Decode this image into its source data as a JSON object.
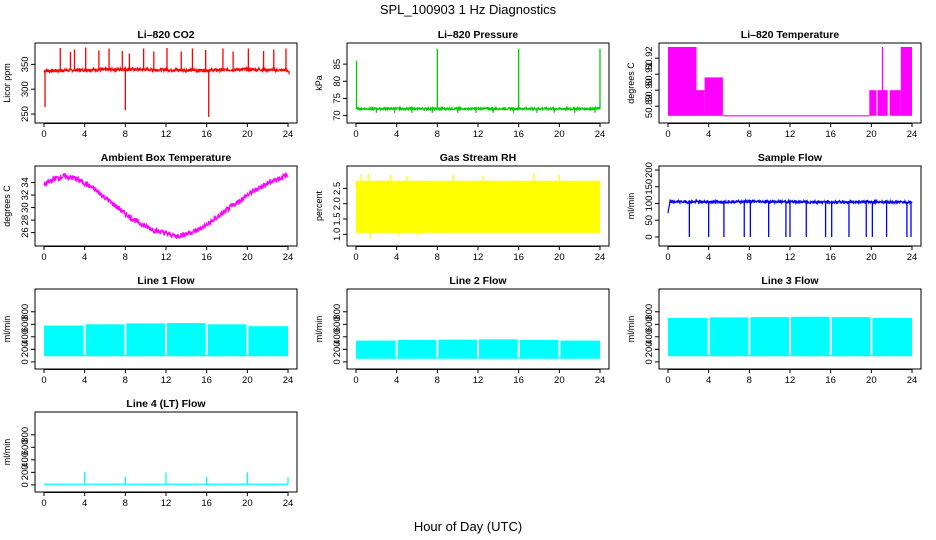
{
  "figure": {
    "title": "SPL_100903  1 Hz Diagnostics",
    "xlabel": "Hour of Day (UTC)"
  },
  "chart_data": [
    {
      "type": "line",
      "title": "Li–820 CO2",
      "ylabel": "Licor ppm",
      "color": "#ff0000",
      "xlim": [
        0,
        24
      ],
      "ylim": [
        240,
        385
      ],
      "x_ticks": [
        "0",
        "4",
        "8",
        "12",
        "16",
        "20",
        "24"
      ],
      "y_ticks": [
        "250",
        "300",
        "350"
      ],
      "y_tick_values": [
        250,
        300,
        350
      ],
      "series": [
        {
          "baseline": [
            [
              0,
              337
            ],
            [
              4,
              339
            ],
            [
              8,
              340
            ],
            [
              12,
              339
            ],
            [
              16,
              338
            ],
            [
              20,
              340
            ],
            [
              24,
              338
            ]
          ],
          "spikes": [
            [
              0.1,
              264
            ],
            [
              1.6,
              383
            ],
            [
              2.6,
              375
            ],
            [
              3.0,
              380
            ],
            [
              4.1,
              384
            ],
            [
              5.4,
              378
            ],
            [
              6.4,
              382
            ],
            [
              7.7,
              377
            ],
            [
              8.0,
              258
            ],
            [
              8.4,
              372
            ],
            [
              9.8,
              382
            ],
            [
              10.8,
              376
            ],
            [
              12.1,
              383
            ],
            [
              13.5,
              376
            ],
            [
              14.6,
              382
            ],
            [
              15.9,
              379
            ],
            [
              16.2,
              244
            ],
            [
              17.6,
              382
            ],
            [
              18.6,
              376
            ],
            [
              20.1,
              382
            ],
            [
              21.6,
              377
            ],
            [
              22.6,
              380
            ],
            [
              23.8,
              382
            ],
            [
              24.1,
              330
            ]
          ],
          "noise": 3
        }
      ]
    },
    {
      "type": "line",
      "title": "Li–820 Pressure",
      "ylabel": "kPa",
      "color": "#00cc00",
      "xlim": [
        0,
        24
      ],
      "ylim": [
        69,
        90
      ],
      "x_ticks": [
        "0",
        "4",
        "8",
        "12",
        "16",
        "20",
        "24"
      ],
      "y_ticks": [
        "70",
        "75",
        "80",
        "85"
      ],
      "y_tick_values": [
        70,
        75,
        80,
        85
      ],
      "series": [
        {
          "baseline": [
            [
              0,
              72
            ],
            [
              4,
              72
            ],
            [
              8,
              72
            ],
            [
              12,
              72
            ],
            [
              16,
              72
            ],
            [
              20,
              72
            ],
            [
              24,
              72
            ]
          ],
          "spikes": [
            [
              0.05,
              86
            ],
            [
              8.0,
              89.5
            ],
            [
              16.0,
              89.5
            ],
            [
              24.0,
              89.5
            ],
            [
              2.0,
              70.8
            ],
            [
              3.8,
              70.8
            ],
            [
              5.5,
              70.8
            ],
            [
              7.5,
              70.8
            ],
            [
              10.0,
              70.8
            ],
            [
              11.8,
              70.8
            ],
            [
              13.5,
              70.8
            ],
            [
              15.5,
              70.8
            ],
            [
              17.8,
              70.8
            ],
            [
              19.5,
              70.8
            ],
            [
              21.5,
              70.8
            ],
            [
              23.5,
              70.8
            ]
          ],
          "noise": 0.3
        }
      ]
    },
    {
      "type": "line",
      "title": "Li–820 Temperature",
      "ylabel": "degrees C",
      "color": "#ff00ff",
      "xlim": [
        0,
        24
      ],
      "ylim": [
        50.882,
        50.927
      ],
      "x_ticks": [
        "0",
        "4",
        "8",
        "12",
        "16",
        "20",
        "24"
      ],
      "y_ticks": [
        "50.89",
        "50.90",
        "50.91",
        "50.92"
      ],
      "y_tick_values": [
        50.89,
        50.9,
        50.91,
        50.92
      ],
      "bands": [
        [
          0,
          2.8,
          50.884,
          50.927
        ],
        [
          2.8,
          3.6,
          50.884,
          50.9
        ],
        [
          3.6,
          5.4,
          50.884,
          50.908
        ],
        [
          19.8,
          20.5,
          50.884,
          50.9
        ],
        [
          20.6,
          21.6,
          50.884,
          50.9
        ],
        [
          21.8,
          22.9,
          50.884,
          50.9
        ],
        [
          22.9,
          24,
          50.884,
          50.927
        ]
      ],
      "series": [
        {
          "baseline": [
            [
              5.4,
              50.884
            ],
            [
              19.8,
              50.884
            ]
          ],
          "spikes": [
            [
              21.1,
              50.927
            ]
          ],
          "noise": 0
        }
      ]
    },
    {
      "type": "line",
      "title": "Ambient Box Temperature",
      "ylabel": "degrees C",
      "color": "#ff00ff",
      "xlim": [
        0,
        24
      ],
      "ylim": [
        24.5,
        36
      ],
      "x_ticks": [
        "0",
        "4",
        "8",
        "12",
        "16",
        "20",
        "24"
      ],
      "y_ticks": [
        "26",
        "28",
        "30",
        "32",
        "34"
      ],
      "y_tick_values": [
        26,
        28,
        30,
        32,
        34
      ],
      "series": [
        {
          "baseline": [
            [
              0,
              33.6
            ],
            [
              1,
              34.6
            ],
            [
              2,
              35.0
            ],
            [
              3,
              34.7
            ],
            [
              4,
              33.9
            ],
            [
              5,
              32.9
            ],
            [
              6,
              31.6
            ],
            [
              7,
              30.3
            ],
            [
              8,
              29.0
            ],
            [
              9,
              27.9
            ],
            [
              10,
              27.0
            ],
            [
              11,
              26.3
            ],
            [
              12,
              25.9
            ],
            [
              13,
              25.4
            ],
            [
              14,
              25.8
            ],
            [
              15,
              26.3
            ],
            [
              16,
              27.2
            ],
            [
              17,
              28.4
            ],
            [
              18,
              29.6
            ],
            [
              19,
              30.8
            ],
            [
              20,
              32.0
            ],
            [
              21,
              33.0
            ],
            [
              22,
              33.9
            ],
            [
              23,
              34.6
            ],
            [
              24,
              35.2
            ]
          ],
          "spikes": [],
          "noise": 0.45
        }
      ]
    },
    {
      "type": "line",
      "title": "Gas Stream RH",
      "ylabel": "percent",
      "color": "#ffff00",
      "xlim": [
        0,
        24
      ],
      "ylim": [
        0.75,
        3.1
      ],
      "x_ticks": [
        "0",
        "4",
        "8",
        "12",
        "16",
        "20",
        "24"
      ],
      "y_ticks": [
        "1.0",
        "1.5",
        "2.0",
        "2.5"
      ],
      "y_tick_values": [
        1.0,
        1.5,
        2.0,
        2.5
      ],
      "bands": [
        [
          0,
          24,
          1.05,
          2.75
        ]
      ],
      "series": [
        {
          "baseline": [
            [
              0,
              2.6
            ],
            [
              24,
              2.6
            ]
          ],
          "spikes": [
            [
              0.5,
              2.95
            ],
            [
              1.2,
              3.0
            ],
            [
              3.4,
              2.95
            ],
            [
              5.0,
              2.9
            ],
            [
              9.6,
              2.95
            ],
            [
              12.5,
              2.9
            ],
            [
              17.5,
              3.0
            ],
            [
              20.0,
              2.95
            ],
            [
              1.4,
              0.85
            ],
            [
              4.2,
              0.95
            ],
            [
              6.1,
              0.95
            ]
          ],
          "noise": 0.1
        }
      ]
    },
    {
      "type": "line",
      "title": "Sample Flow",
      "ylabel": "ml/min",
      "color": "#0000ff",
      "xlim": [
        0,
        24
      ],
      "ylim": [
        -15,
        200
      ],
      "x_ticks": [
        "0",
        "4",
        "8",
        "12",
        "16",
        "20",
        "24"
      ],
      "y_ticks": [
        "0",
        "50",
        "100",
        "150",
        "200"
      ],
      "y_tick_values": [
        0,
        50,
        100,
        150,
        200
      ],
      "series": [
        {
          "baseline": [
            [
              0,
              70
            ],
            [
              0.2,
              105
            ],
            [
              4,
              105
            ],
            [
              8,
              106
            ],
            [
              12,
              105
            ],
            [
              16,
              104
            ],
            [
              20,
              105
            ],
            [
              24,
              104
            ]
          ],
          "spikes": [
            [
              2.1,
              0
            ],
            [
              4.0,
              0
            ],
            [
              5.5,
              0
            ],
            [
              7.5,
              0
            ],
            [
              8.1,
              0
            ],
            [
              9.9,
              0
            ],
            [
              11.6,
              0
            ],
            [
              12.0,
              0
            ],
            [
              13.6,
              0
            ],
            [
              15.5,
              0
            ],
            [
              16.1,
              0
            ],
            [
              17.8,
              0
            ],
            [
              19.5,
              0
            ],
            [
              20.1,
              0
            ],
            [
              21.5,
              0
            ],
            [
              23.5,
              0
            ],
            [
              23.9,
              0
            ]
          ],
          "noise": 4
        }
      ]
    },
    {
      "type": "line",
      "title": "Line 1 Flow",
      "ylabel": "ml/min",
      "color": "#00ffff",
      "xlim": [
        0,
        24
      ],
      "ylim": [
        -50,
        1100
      ],
      "x_ticks": [
        "0",
        "4",
        "8",
        "12",
        "16",
        "20",
        "24"
      ],
      "y_ticks": [
        "0",
        "200",
        "400",
        "600",
        "800"
      ],
      "y_tick_values": [
        0,
        200,
        400,
        600,
        800
      ],
      "bands": [
        [
          0,
          3.9,
          100,
          580
        ],
        [
          4.1,
          7.9,
          100,
          600
        ],
        [
          8.1,
          11.9,
          100,
          615
        ],
        [
          12.1,
          15.9,
          100,
          620
        ],
        [
          16.1,
          19.9,
          100,
          600
        ],
        [
          20.1,
          24,
          100,
          570
        ]
      ],
      "series": [
        {
          "baseline": [
            [
              0,
              100
            ],
            [
              24,
              100
            ]
          ],
          "spikes": [],
          "noise": 0
        }
      ]
    },
    {
      "type": "line",
      "title": "Line 2 Flow",
      "ylabel": "ml/min",
      "color": "#00ffff",
      "xlim": [
        0,
        24
      ],
      "ylim": [
        -50,
        1100
      ],
      "x_ticks": [
        "0",
        "4",
        "8",
        "12",
        "16",
        "20",
        "24"
      ],
      "y_ticks": [
        "0",
        "200",
        "400",
        "600",
        "800"
      ],
      "y_tick_values": [
        0,
        200,
        400,
        600,
        800
      ],
      "bands": [
        [
          0,
          3.9,
          60,
          340
        ],
        [
          4.1,
          7.9,
          60,
          350
        ],
        [
          8.1,
          11.9,
          60,
          355
        ],
        [
          12.1,
          15.9,
          60,
          360
        ],
        [
          16.1,
          19.9,
          60,
          350
        ],
        [
          20.1,
          24,
          60,
          340
        ]
      ],
      "series": [
        {
          "baseline": [
            [
              0,
              60
            ],
            [
              24,
              60
            ]
          ],
          "spikes": [],
          "noise": 0
        }
      ]
    },
    {
      "type": "line",
      "title": "Line 3 Flow",
      "ylabel": "ml/min",
      "color": "#00ffff",
      "xlim": [
        0,
        24
      ],
      "ylim": [
        -50,
        1100
      ],
      "x_ticks": [
        "0",
        "4",
        "8",
        "12",
        "16",
        "20",
        "24"
      ],
      "y_ticks": [
        "0",
        "200",
        "400",
        "600",
        "800"
      ],
      "y_tick_values": [
        0,
        200,
        400,
        600,
        800
      ],
      "bands": [
        [
          0,
          3.9,
          100,
          700
        ],
        [
          4.1,
          7.9,
          100,
          710
        ],
        [
          8.1,
          11.9,
          100,
          715
        ],
        [
          12.1,
          15.9,
          100,
          720
        ],
        [
          16.1,
          19.9,
          100,
          715
        ],
        [
          20.1,
          24,
          100,
          700
        ]
      ],
      "series": [
        {
          "baseline": [
            [
              0,
              100
            ],
            [
              24,
              100
            ]
          ],
          "spikes": [],
          "noise": 0
        }
      ]
    },
    {
      "type": "line",
      "title": "Line 4 (LT) Flow",
      "ylabel": "ml/min",
      "color": "#00ffff",
      "xlim": [
        0,
        24
      ],
      "ylim": [
        -50,
        1100
      ],
      "x_ticks": [
        "0",
        "4",
        "8",
        "12",
        "16",
        "20",
        "24"
      ],
      "y_ticks": [
        "0",
        "200",
        "400",
        "600",
        "800"
      ],
      "y_tick_values": [
        0,
        200,
        400,
        600,
        800
      ],
      "series": [
        {
          "baseline": [
            [
              0,
              10
            ],
            [
              24,
              10
            ]
          ],
          "spikes": [
            [
              4.0,
              210
            ],
            [
              8.0,
              130
            ],
            [
              12.0,
              200
            ],
            [
              16.0,
              130
            ],
            [
              20.0,
              200
            ],
            [
              24.0,
              120
            ]
          ],
          "noise": 2
        }
      ]
    }
  ]
}
